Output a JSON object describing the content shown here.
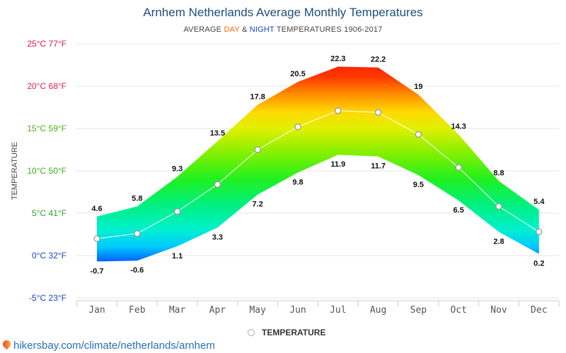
{
  "header": {
    "title": "Arnhem Netherlands Average Monthly Temperatures",
    "subtitle_prefix": "AVERAGE ",
    "subtitle_day": "DAY",
    "subtitle_amp": " & ",
    "subtitle_night": "NIGHT",
    "subtitle_suffix": " TEMPERATURES 1906-2017"
  },
  "footer": {
    "source_text": "hikersbay.com/climate/netherlands/arnhem"
  },
  "legend": {
    "label": "TEMPERATURE"
  },
  "colors": {
    "title": "#1f4e79",
    "day": "#f26b0f",
    "night": "#1c3fd6",
    "line": "#ffffff",
    "grid": "#e6e6e6"
  },
  "chart_data": {
    "type": "area",
    "title": "Arnhem Netherlands Average Monthly Temperatures",
    "ylabel": "TEMPERATURE",
    "ylim": [
      -5,
      25
    ],
    "yticks": [
      25,
      20,
      15,
      10,
      5,
      0,
      -5
    ],
    "ytick_labels": [
      "25°C 77°F",
      "20°C 68°F",
      "15°C 59°F",
      "10°C 50°F",
      "5°C 41°F",
      "0°C 32°F",
      "-5°C 23°F"
    ],
    "ytick_colors": [
      "#e0105a",
      "#e8205a",
      "#4caf1a",
      "#3dae1e",
      "#2aa12a",
      "#1f3fd0",
      "#1f3fd0"
    ],
    "categories": [
      "Jan",
      "Feb",
      "Mar",
      "Apr",
      "May",
      "Jun",
      "Jul",
      "Aug",
      "Sep",
      "Oct",
      "Nov",
      "Dec"
    ],
    "series": [
      {
        "name": "DAY",
        "values": [
          4.6,
          5.8,
          9.3,
          13.5,
          17.8,
          20.5,
          22.3,
          22.2,
          19,
          14.3,
          8.8,
          5.4
        ]
      },
      {
        "name": "NIGHT",
        "values": [
          -0.7,
          -0.6,
          1.1,
          3.3,
          7.2,
          9.8,
          11.9,
          11.7,
          9.5,
          6.5,
          2.8,
          0.2
        ]
      },
      {
        "name": "TEMPERATURE",
        "values": [
          2.0,
          2.6,
          5.2,
          8.4,
          12.5,
          15.2,
          17.1,
          16.9,
          14.3,
          10.4,
          5.8,
          2.8
        ]
      }
    ],
    "grid": true,
    "legend_position": "bottom"
  }
}
